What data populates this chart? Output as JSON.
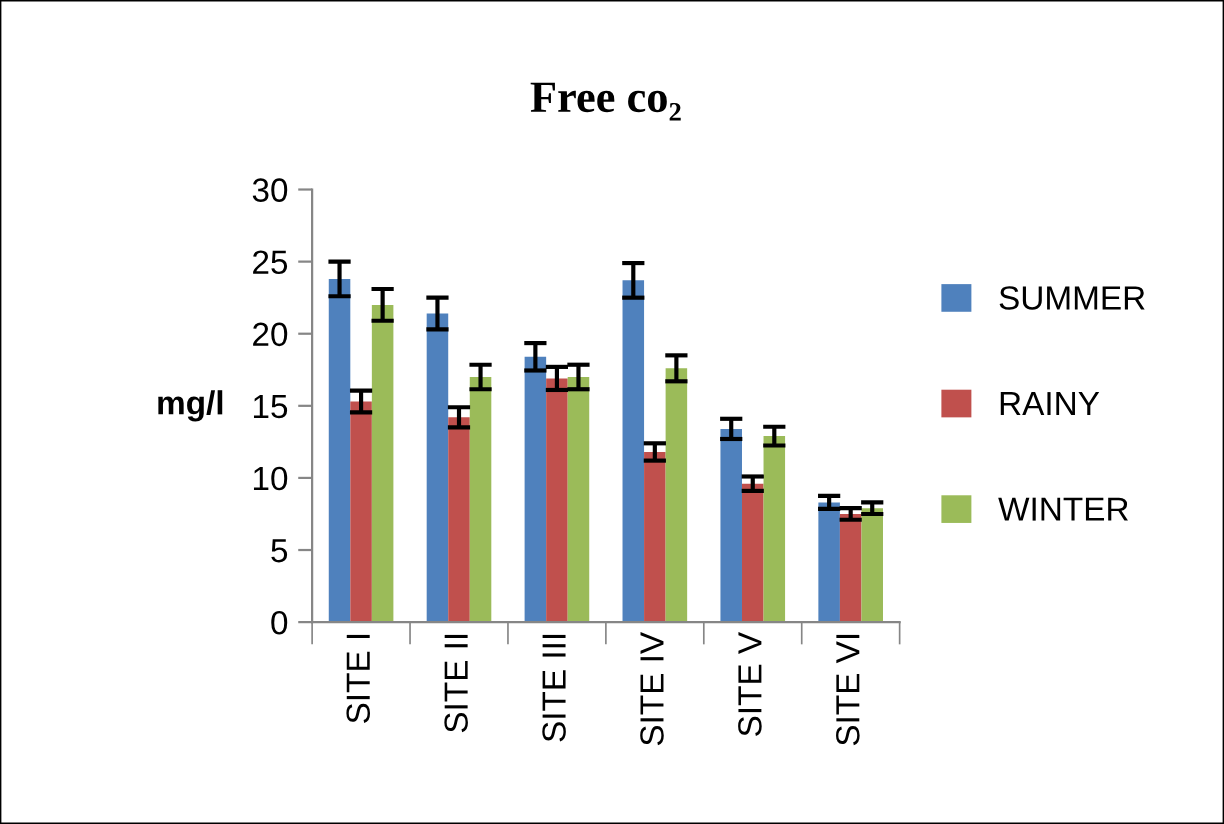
{
  "chart_data": {
    "type": "bar",
    "title": "Free co₂",
    "ylabel": "mg/l",
    "categories": [
      "SITE I",
      "SITE II",
      "SITE III",
      "SITE IV",
      "SITE V",
      "SITE VI"
    ],
    "series": [
      {
        "name": "SUMMER",
        "color": "#4f81bd",
        "values": [
          23.8,
          21.4,
          18.4,
          23.7,
          13.4,
          8.3
        ],
        "errors": [
          1.2,
          1.1,
          0.95,
          1.2,
          0.7,
          0.45
        ]
      },
      {
        "name": "RAINY",
        "color": "#c0504d",
        "values": [
          15.3,
          14.2,
          16.9,
          11.8,
          9.6,
          7.5
        ],
        "errors": [
          0.75,
          0.7,
          0.8,
          0.6,
          0.5,
          0.4
        ]
      },
      {
        "name": "WINTER",
        "color": "#9bbb59",
        "values": [
          22.0,
          17.0,
          17.0,
          17.6,
          12.9,
          7.9
        ],
        "errors": [
          1.1,
          0.85,
          0.85,
          0.9,
          0.65,
          0.4
        ]
      }
    ],
    "ylim": [
      0,
      30
    ],
    "yticks": [
      0,
      5,
      10,
      15,
      20,
      25,
      30
    ],
    "grid": false,
    "legend": "right"
  }
}
